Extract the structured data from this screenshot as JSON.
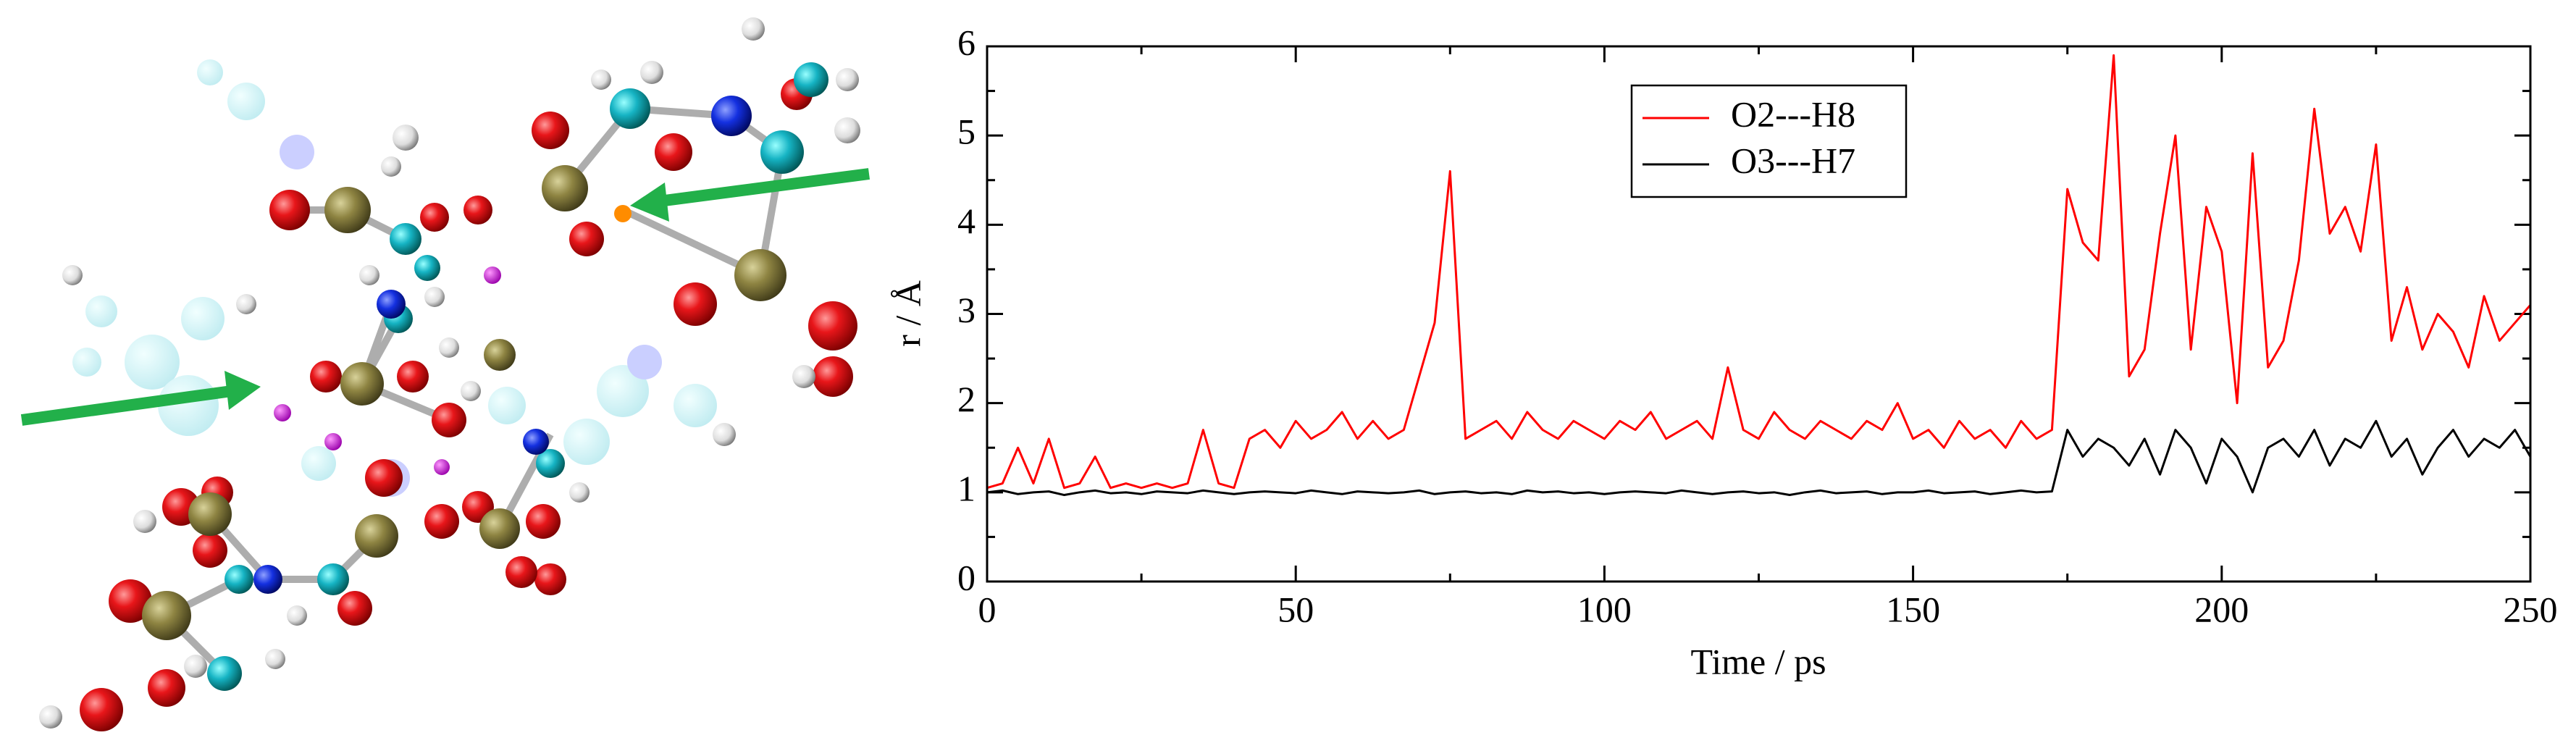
{
  "chart_data": {
    "type": "line",
    "xlabel": "Time / ps",
    "ylabel": "r / Å",
    "x": [
      0,
      2.5,
      5,
      7.5,
      10,
      12.5,
      15,
      17.5,
      20,
      22.5,
      25,
      27.5,
      30,
      32.5,
      35,
      37.5,
      40,
      42.5,
      45,
      47.5,
      50,
      52.5,
      55,
      57.5,
      60,
      62.5,
      65,
      67.5,
      70,
      72.5,
      75,
      77.5,
      80,
      82.5,
      85,
      87.5,
      90,
      92.5,
      95,
      97.5,
      100,
      102.5,
      105,
      107.5,
      110,
      112.5,
      115,
      117.5,
      120,
      122.5,
      125,
      127.5,
      130,
      132.5,
      135,
      137.5,
      140,
      142.5,
      145,
      147.5,
      150,
      152.5,
      155,
      157.5,
      160,
      162.5,
      165,
      167.5,
      170,
      172.5,
      175,
      177.5,
      180,
      182.5,
      185,
      187.5,
      190,
      192.5,
      195,
      197.5,
      200,
      202.5,
      205,
      207.5,
      210,
      212.5,
      215,
      217.5,
      220,
      222.5,
      225,
      227.5,
      230,
      232.5,
      235,
      237.5,
      240,
      242.5,
      245,
      247.5,
      250
    ],
    "series": [
      {
        "name": "O2---H8",
        "color": "#ff0000",
        "values": [
          1.05,
          1.1,
          1.5,
          1.1,
          1.6,
          1.05,
          1.1,
          1.4,
          1.05,
          1.1,
          1.05,
          1.1,
          1.05,
          1.1,
          1.7,
          1.1,
          1.05,
          1.6,
          1.7,
          1.5,
          1.8,
          1.6,
          1.7,
          1.9,
          1.6,
          1.8,
          1.6,
          1.7,
          2.3,
          2.9,
          4.6,
          1.6,
          1.7,
          1.8,
          1.6,
          1.9,
          1.7,
          1.6,
          1.8,
          1.7,
          1.6,
          1.8,
          1.7,
          1.9,
          1.6,
          1.7,
          1.8,
          1.6,
          2.4,
          1.7,
          1.6,
          1.9,
          1.7,
          1.6,
          1.8,
          1.7,
          1.6,
          1.8,
          1.7,
          2.0,
          1.6,
          1.7,
          1.5,
          1.8,
          1.6,
          1.7,
          1.5,
          1.8,
          1.6,
          1.7,
          4.4,
          3.8,
          3.6,
          5.9,
          2.3,
          2.6,
          3.9,
          5.0,
          2.6,
          4.2,
          3.7,
          2.0,
          4.8,
          2.4,
          2.7,
          3.6,
          5.3,
          3.9,
          4.2,
          3.7,
          4.9,
          2.7,
          3.3,
          2.6,
          3.0,
          2.8,
          2.4,
          3.2,
          2.7,
          2.9,
          3.1
        ]
      },
      {
        "name": "O3---H7",
        "color": "#000000",
        "values": [
          1.0,
          1.02,
          0.98,
          1.0,
          1.01,
          0.97,
          1.0,
          1.02,
          0.99,
          1.0,
          0.98,
          1.01,
          1.0,
          0.99,
          1.02,
          1.0,
          0.98,
          1.0,
          1.01,
          1.0,
          0.99,
          1.02,
          1.0,
          0.98,
          1.01,
          1.0,
          0.99,
          1.0,
          1.02,
          0.98,
          1.0,
          1.01,
          0.99,
          1.0,
          0.98,
          1.02,
          1.0,
          1.01,
          0.99,
          1.0,
          0.98,
          1.0,
          1.01,
          1.0,
          0.99,
          1.02,
          1.0,
          0.98,
          1.0,
          1.01,
          0.99,
          1.0,
          0.97,
          1.0,
          1.02,
          0.99,
          1.0,
          1.01,
          0.98,
          1.0,
          1.0,
          1.02,
          0.99,
          1.0,
          1.01,
          0.98,
          1.0,
          1.02,
          1.0,
          1.01,
          1.7,
          1.4,
          1.6,
          1.5,
          1.3,
          1.6,
          1.2,
          1.7,
          1.5,
          1.1,
          1.6,
          1.4,
          1.0,
          1.5,
          1.6,
          1.4,
          1.7,
          1.3,
          1.6,
          1.5,
          1.8,
          1.4,
          1.6,
          1.2,
          1.5,
          1.7,
          1.4,
          1.6,
          1.5,
          1.7,
          1.4
        ]
      }
    ],
    "xlim": [
      0,
      250
    ],
    "ylim": [
      0,
      6
    ],
    "xticks": [
      0,
      50,
      100,
      150,
      200,
      250
    ],
    "yticks": [
      0,
      1,
      2,
      3,
      4,
      5,
      6
    ],
    "xticks_minor": [
      25,
      75,
      125,
      175,
      225
    ],
    "yticks_minor": [
      0.5,
      1.5,
      2.5,
      3.5,
      4.5,
      5.5
    ],
    "legend": "upper-center"
  }
}
